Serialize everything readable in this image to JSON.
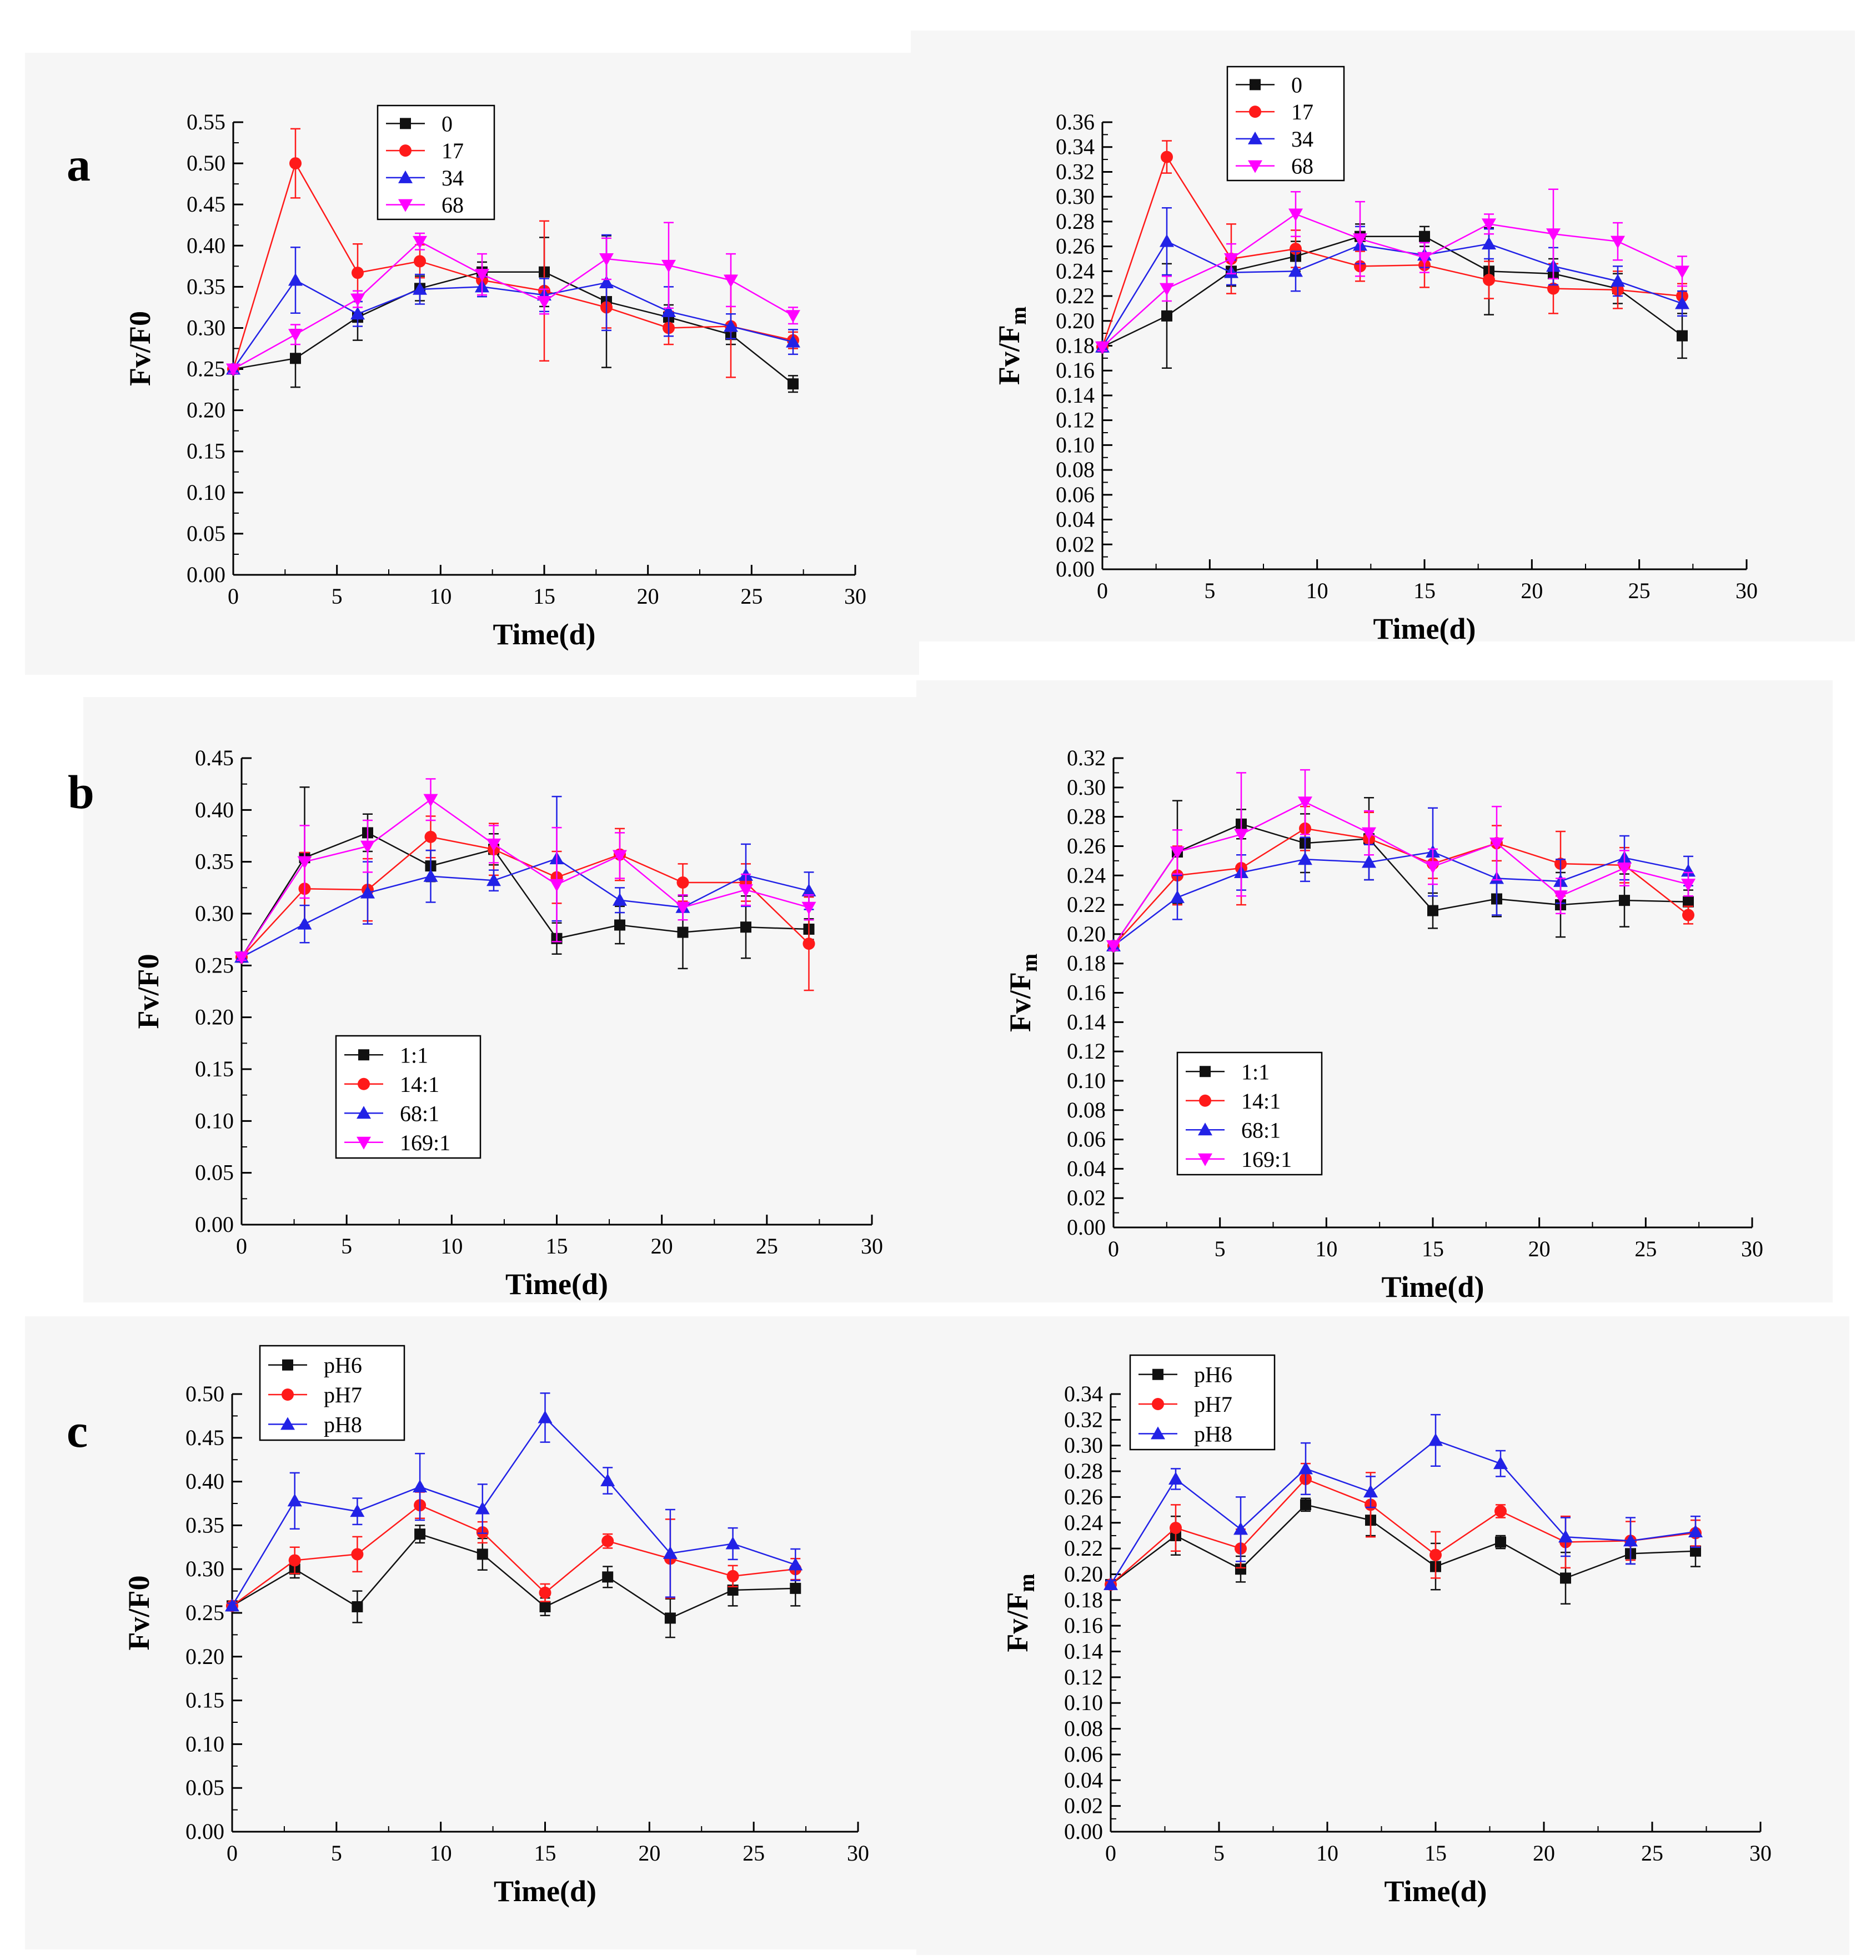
{
  "panel_labels": [
    "a",
    "b",
    "c"
  ],
  "colors": {
    "black": "#111111",
    "red": "#ff1a1a",
    "blue": "#2222e6",
    "magenta": "#ff00ff"
  },
  "chart_data": [
    {
      "id": "a-left",
      "panel": "a",
      "type": "line",
      "xlabel": "Time(d)",
      "ylabel": "Fv/F0",
      "ylabel_parts": [
        "Fv/F0"
      ],
      "xlim": [
        0,
        30
      ],
      "ylim": [
        0,
        0.55
      ],
      "xticks": [
        0,
        5,
        10,
        15,
        20,
        25,
        30
      ],
      "xtick_labels": [
        "0",
        "5",
        "10",
        "15",
        "20",
        "25",
        "30"
      ],
      "yticks": [
        0,
        0.05,
        0.1,
        0.15,
        0.2,
        0.25,
        0.3,
        0.35,
        0.4,
        0.45,
        0.5,
        0.55
      ],
      "ytick_labels": [
        "0.00",
        "0.05",
        "0.10",
        "0.15",
        "0.20",
        "0.25",
        "0.30",
        "0.35",
        "0.40",
        "0.45",
        "0.50",
        "0.55"
      ],
      "legend": {
        "position": "top-center"
      },
      "x": [
        0,
        3,
        6,
        9,
        12,
        15,
        18,
        21,
        24,
        27
      ],
      "series": [
        {
          "name": "0",
          "color": "black",
          "marker": "square",
          "values": [
            0.25,
            0.263,
            0.313,
            0.348,
            0.368,
            0.368,
            0.332,
            0.313,
            0.292,
            0.232
          ],
          "errors": [
            0.005,
            0.035,
            0.028,
            0.015,
            0.012,
            0.042,
            0.08,
            0.015,
            0.012,
            0.01
          ]
        },
        {
          "name": "17",
          "color": "red",
          "marker": "circle",
          "values": [
            0.25,
            0.5,
            0.367,
            0.381,
            0.358,
            0.345,
            0.325,
            0.3,
            0.302,
            0.285
          ],
          "errors": [
            0.005,
            0.042,
            0.035,
            0.02,
            0.012,
            0.085,
            0.025,
            0.02,
            0.062,
            0.01
          ]
        },
        {
          "name": "34",
          "color": "blue",
          "marker": "triangle-up",
          "values": [
            0.25,
            0.358,
            0.317,
            0.347,
            0.35,
            0.34,
            0.355,
            0.32,
            0.302,
            0.283
          ],
          "errors": [
            0.005,
            0.04,
            0.015,
            0.018,
            0.012,
            0.02,
            0.058,
            0.03,
            0.015,
            0.015
          ]
        },
        {
          "name": "68",
          "color": "magenta",
          "marker": "triangle-down",
          "values": [
            0.25,
            0.292,
            0.335,
            0.405,
            0.365,
            0.332,
            0.384,
            0.376,
            0.358,
            0.315
          ],
          "errors": [
            0.005,
            0.012,
            0.01,
            0.01,
            0.025,
            0.015,
            0.025,
            0.052,
            0.032,
            0.01
          ]
        }
      ]
    },
    {
      "id": "a-right",
      "panel": "a",
      "type": "line",
      "xlabel": "Time(d)",
      "ylabel": "Fv/Fm",
      "ylabel_parts": [
        "Fv/F",
        "m"
      ],
      "xlim": [
        0,
        30
      ],
      "ylim": [
        0,
        0.36
      ],
      "xticks": [
        0,
        5,
        10,
        15,
        20,
        25,
        30
      ],
      "xtick_labels": [
        "0",
        "5",
        "10",
        "15",
        "20",
        "25",
        "30"
      ],
      "yticks": [
        0,
        0.02,
        0.04,
        0.06,
        0.08,
        0.1,
        0.12,
        0.14,
        0.16,
        0.18,
        0.2,
        0.22,
        0.24,
        0.26,
        0.28,
        0.3,
        0.32,
        0.34,
        0.36
      ],
      "ytick_labels": [
        "0.00",
        "0.02",
        "0.04",
        "0.06",
        "0.08",
        "0.10",
        "0.12",
        "0.14",
        "0.16",
        "0.18",
        "0.20",
        "0.22",
        "0.24",
        "0.26",
        "0.28",
        "0.30",
        "0.32",
        "0.34",
        "0.36"
      ],
      "legend": {
        "position": "top-center"
      },
      "x": [
        0,
        3,
        6,
        9,
        12,
        15,
        18,
        21,
        24,
        27
      ],
      "series": [
        {
          "name": "0",
          "color": "black",
          "marker": "square",
          "values": [
            0.179,
            0.204,
            0.24,
            0.252,
            0.268,
            0.268,
            0.24,
            0.238,
            0.226,
            0.188
          ],
          "errors": [
            0.003,
            0.042,
            0.012,
            0.012,
            0.01,
            0.008,
            0.035,
            0.012,
            0.012,
            0.018
          ]
        },
        {
          "name": "17",
          "color": "red",
          "marker": "circle",
          "values": [
            0.179,
            0.332,
            0.25,
            0.258,
            0.244,
            0.245,
            0.233,
            0.226,
            0.225,
            0.22
          ],
          "errors": [
            0.003,
            0.013,
            0.028,
            0.015,
            0.012,
            0.018,
            0.015,
            0.02,
            0.015,
            0.01
          ]
        },
        {
          "name": "34",
          "color": "blue",
          "marker": "triangle-up",
          "values": [
            0.179,
            0.264,
            0.239,
            0.24,
            0.261,
            0.253,
            0.262,
            0.244,
            0.232,
            0.214
          ],
          "errors": [
            0.003,
            0.027,
            0.01,
            0.016,
            0.015,
            0.01,
            0.012,
            0.015,
            0.012,
            0.01
          ]
        },
        {
          "name": "68",
          "color": "magenta",
          "marker": "triangle-down",
          "values": [
            0.179,
            0.226,
            0.25,
            0.286,
            0.266,
            0.251,
            0.278,
            0.27,
            0.264,
            0.24
          ],
          "errors": [
            0.003,
            0.01,
            0.012,
            0.018,
            0.03,
            0.012,
            0.008,
            0.036,
            0.015,
            0.012
          ]
        }
      ]
    },
    {
      "id": "b-left",
      "panel": "b",
      "type": "line",
      "xlabel": "Time(d)",
      "ylabel": "Fv/F0",
      "ylabel_parts": [
        "Fv/F0"
      ],
      "xlim": [
        0,
        30
      ],
      "ylim": [
        0,
        0.45
      ],
      "xticks": [
        0,
        5,
        10,
        15,
        20,
        25,
        30
      ],
      "xtick_labels": [
        "0",
        "5",
        "10",
        "15",
        "20",
        "25",
        "30"
      ],
      "yticks": [
        0,
        0.05,
        0.1,
        0.15,
        0.2,
        0.25,
        0.3,
        0.35,
        0.4,
        0.45
      ],
      "ytick_labels": [
        "0.00",
        "0.05",
        "0.10",
        "0.15",
        "0.20",
        "0.25",
        "0.30",
        "0.35",
        "0.40",
        "0.45"
      ],
      "legend": {
        "position": "bottom-left"
      },
      "x": [
        0,
        3,
        6,
        9,
        12,
        15,
        18,
        21,
        24,
        27
      ],
      "series": [
        {
          "name": "1:1",
          "color": "black",
          "marker": "square",
          "values": [
            0.258,
            0.354,
            0.378,
            0.346,
            0.362,
            0.276,
            0.289,
            0.282,
            0.287,
            0.285
          ],
          "errors": [
            0.003,
            0.068,
            0.018,
            0.015,
            0.015,
            0.015,
            0.018,
            0.035,
            0.03,
            0.01
          ]
        },
        {
          "name": "14:1",
          "color": "red",
          "marker": "circle",
          "values": [
            0.258,
            0.324,
            0.323,
            0.374,
            0.362,
            0.335,
            0.357,
            0.33,
            0.33,
            0.271
          ],
          "errors": [
            0.003,
            0.035,
            0.03,
            0.02,
            0.025,
            0.025,
            0.025,
            0.018,
            0.018,
            0.045
          ]
        },
        {
          "name": "68:1",
          "color": "blue",
          "marker": "triangle-up",
          "values": [
            0.258,
            0.29,
            0.32,
            0.336,
            0.332,
            0.353,
            0.313,
            0.306,
            0.337,
            0.322
          ],
          "errors": [
            0.003,
            0.018,
            0.03,
            0.025,
            0.01,
            0.06,
            0.012,
            0.012,
            0.03,
            0.018
          ]
        },
        {
          "name": "169:1",
          "color": "magenta",
          "marker": "triangle-down",
          "values": [
            0.258,
            0.35,
            0.365,
            0.41,
            0.367,
            0.328,
            0.356,
            0.306,
            0.323,
            0.306
          ],
          "errors": [
            0.003,
            0.035,
            0.025,
            0.02,
            0.018,
            0.055,
            0.022,
            0.012,
            0.015,
            0.012
          ]
        }
      ]
    },
    {
      "id": "b-right",
      "panel": "b",
      "type": "line",
      "xlabel": "Time(d)",
      "ylabel": "Fv/Fm",
      "ylabel_parts": [
        "Fv/F",
        "m"
      ],
      "xlim": [
        0,
        30
      ],
      "ylim": [
        0,
        0.32
      ],
      "xticks": [
        0,
        5,
        10,
        15,
        20,
        25,
        30
      ],
      "xtick_labels": [
        "0",
        "5",
        "10",
        "15",
        "20",
        "25",
        "30"
      ],
      "yticks": [
        0,
        0.02,
        0.04,
        0.06,
        0.08,
        0.1,
        0.12,
        0.14,
        0.16,
        0.18,
        0.2,
        0.22,
        0.24,
        0.26,
        0.28,
        0.3,
        0.32
      ],
      "ytick_labels": [
        "0.00",
        "0.02",
        "0.04",
        "0.06",
        "0.08",
        "0.10",
        "0.12",
        "0.14",
        "0.16",
        "0.18",
        "0.20",
        "0.22",
        "0.24",
        "0.26",
        "0.28",
        "0.30",
        "0.32"
      ],
      "legend": {
        "position": "bottom-center"
      },
      "x": [
        0,
        3,
        6,
        9,
        12,
        15,
        18,
        21,
        24,
        27
      ],
      "series": [
        {
          "name": "1:1",
          "color": "black",
          "marker": "square",
          "values": [
            0.192,
            0.256,
            0.275,
            0.262,
            0.265,
            0.216,
            0.224,
            0.22,
            0.223,
            0.222
          ],
          "errors": [
            0.003,
            0.035,
            0.01,
            0.02,
            0.028,
            0.012,
            0.012,
            0.022,
            0.018,
            0.008
          ]
        },
        {
          "name": "14:1",
          "color": "red",
          "marker": "circle",
          "values": [
            0.192,
            0.24,
            0.245,
            0.272,
            0.265,
            0.248,
            0.262,
            0.248,
            0.247,
            0.213
          ],
          "errors": [
            0.003,
            0.02,
            0.025,
            0.015,
            0.018,
            0.01,
            0.012,
            0.022,
            0.012,
            0.006
          ]
        },
        {
          "name": "68:1",
          "color": "blue",
          "marker": "triangle-up",
          "values": [
            0.192,
            0.225,
            0.242,
            0.251,
            0.249,
            0.256,
            0.238,
            0.236,
            0.252,
            0.243
          ],
          "errors": [
            0.003,
            0.015,
            0.012,
            0.015,
            0.012,
            0.03,
            0.025,
            0.015,
            0.015,
            0.01
          ]
        },
        {
          "name": "169:1",
          "color": "magenta",
          "marker": "triangle-down",
          "values": [
            0.192,
            0.256,
            0.268,
            0.29,
            0.269,
            0.246,
            0.262,
            0.226,
            0.245,
            0.234
          ],
          "errors": [
            0.003,
            0.015,
            0.042,
            0.022,
            0.015,
            0.012,
            0.025,
            0.012,
            0.012,
            0.008
          ]
        }
      ]
    },
    {
      "id": "c-left",
      "panel": "c",
      "type": "line",
      "xlabel": "Time(d)",
      "ylabel": "Fv/F0",
      "ylabel_parts": [
        "Fv/F0"
      ],
      "xlim": [
        0,
        30
      ],
      "ylim": [
        0,
        0.5
      ],
      "xticks": [
        0,
        5,
        10,
        15,
        20,
        25,
        30
      ],
      "xtick_labels": [
        "0",
        "5",
        "10",
        "15",
        "20",
        "25",
        "30"
      ],
      "yticks": [
        0,
        0.05,
        0.1,
        0.15,
        0.2,
        0.25,
        0.3,
        0.35,
        0.4,
        0.45,
        0.5
      ],
      "ytick_labels": [
        "0.00",
        "0.05",
        "0.10",
        "0.15",
        "0.20",
        "0.25",
        "0.30",
        "0.35",
        "0.40",
        "0.45",
        "0.50"
      ],
      "legend": {
        "position": "top-left"
      },
      "x": [
        0,
        3,
        6,
        9,
        12,
        15,
        18,
        21,
        24,
        27
      ],
      "series": [
        {
          "name": "pH6",
          "color": "black",
          "marker": "square",
          "values": [
            0.258,
            0.3,
            0.257,
            0.34,
            0.317,
            0.257,
            0.291,
            0.244,
            0.276,
            0.278
          ],
          "errors": [
            0.003,
            0.01,
            0.018,
            0.01,
            0.018,
            0.01,
            0.012,
            0.022,
            0.018,
            0.02
          ]
        },
        {
          "name": "pH7",
          "color": "red",
          "marker": "circle",
          "values": [
            0.258,
            0.31,
            0.317,
            0.373,
            0.342,
            0.273,
            0.332,
            0.312,
            0.292,
            0.3
          ],
          "errors": [
            0.003,
            0.015,
            0.02,
            0.015,
            0.012,
            0.01,
            0.008,
            0.045,
            0.012,
            0.012
          ]
        },
        {
          "name": "pH8",
          "color": "blue",
          "marker": "triangle-up",
          "values": [
            0.258,
            0.378,
            0.366,
            0.394,
            0.369,
            0.473,
            0.401,
            0.318,
            0.329,
            0.305
          ],
          "errors": [
            0.003,
            0.032,
            0.015,
            0.038,
            0.028,
            0.028,
            0.015,
            0.05,
            0.018,
            0.018
          ]
        }
      ]
    },
    {
      "id": "c-right",
      "panel": "c",
      "type": "line",
      "xlabel": "Time(d)",
      "ylabel": "Fv/Fm",
      "ylabel_parts": [
        "Fv/F",
        "m"
      ],
      "xlim": [
        0,
        30
      ],
      "ylim": [
        0,
        0.34
      ],
      "xticks": [
        0,
        5,
        10,
        15,
        20,
        25,
        30
      ],
      "xtick_labels": [
        "0",
        "5",
        "10",
        "15",
        "20",
        "25",
        "30"
      ],
      "yticks": [
        0,
        0.02,
        0.04,
        0.06,
        0.08,
        0.1,
        0.12,
        0.14,
        0.16,
        0.18,
        0.2,
        0.22,
        0.24,
        0.26,
        0.28,
        0.3,
        0.32,
        0.34
      ],
      "ytick_labels": [
        "0.00",
        "0.02",
        "0.04",
        "0.06",
        "0.08",
        "0.10",
        "0.12",
        "0.14",
        "0.16",
        "0.18",
        "0.20",
        "0.22",
        "0.24",
        "0.26",
        "0.28",
        "0.30",
        "0.32",
        "0.34"
      ],
      "legend": {
        "position": "top-left"
      },
      "x": [
        0,
        3,
        6,
        9,
        12,
        15,
        18,
        21,
        24,
        27
      ],
      "series": [
        {
          "name": "pH6",
          "color": "black",
          "marker": "square",
          "values": [
            0.192,
            0.23,
            0.204,
            0.254,
            0.242,
            0.206,
            0.225,
            0.197,
            0.216,
            0.218
          ],
          "errors": [
            0.003,
            0.015,
            0.01,
            0.005,
            0.012,
            0.018,
            0.005,
            0.02,
            0.008,
            0.012
          ]
        },
        {
          "name": "pH7",
          "color": "red",
          "marker": "circle",
          "values": [
            0.192,
            0.236,
            0.22,
            0.274,
            0.254,
            0.215,
            0.249,
            0.225,
            0.226,
            0.232
          ],
          "errors": [
            0.003,
            0.018,
            0.015,
            0.012,
            0.025,
            0.018,
            0.005,
            0.02,
            0.015,
            0.01
          ]
        },
        {
          "name": "pH8",
          "color": "blue",
          "marker": "triangle-up",
          "values": [
            0.192,
            0.274,
            0.235,
            0.282,
            0.264,
            0.304,
            0.286,
            0.229,
            0.226,
            0.233
          ],
          "errors": [
            0.003,
            0.008,
            0.025,
            0.02,
            0.012,
            0.02,
            0.01,
            0.015,
            0.018,
            0.012
          ]
        }
      ]
    }
  ]
}
